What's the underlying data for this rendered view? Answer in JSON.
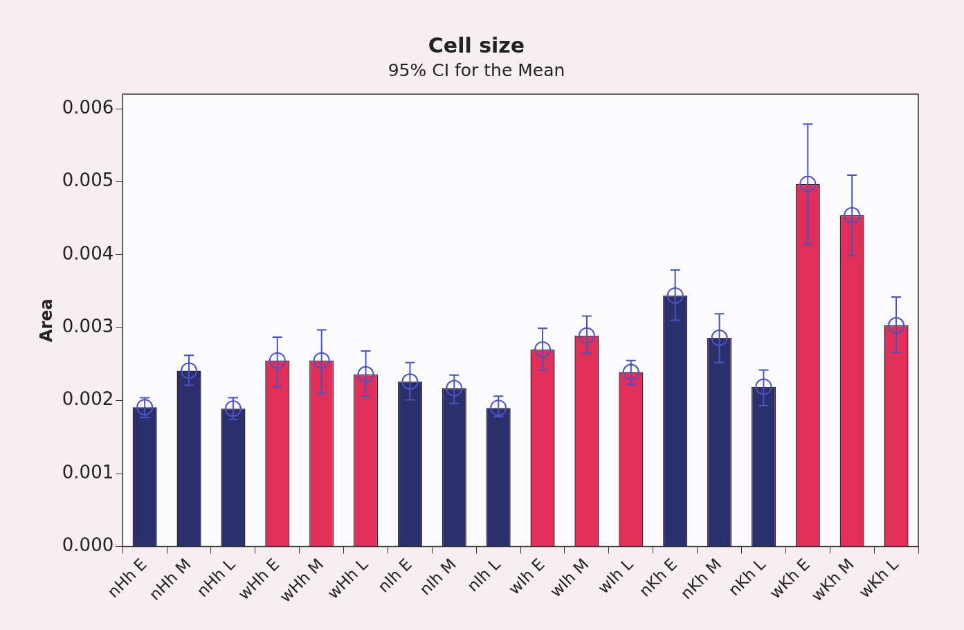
{
  "chart_data": {
    "type": "bar",
    "title": "Cell size",
    "subtitle": "95% CI for the Mean",
    "ylabel": "Area",
    "categories": [
      "nHh E",
      "nHh M",
      "nHh L",
      "wHh E",
      "wHh M",
      "wHh L",
      "nIh E",
      "nIh M",
      "nIh L",
      "wIh E",
      "wIh M",
      "wIh L",
      "nKh E",
      "nKh M",
      "nKh L",
      "wKh E",
      "wKh M",
      "wKh L"
    ],
    "series": [
      {
        "type": "bar",
        "colors": [
          "#2b2f6b",
          "#2b2f6b",
          "#2b2f6b",
          "#e0305a",
          "#e0305a",
          "#e0305a",
          "#2b2f6b",
          "#2b2f6b",
          "#2b2f6b",
          "#e0305a",
          "#e0305a",
          "#e0305a",
          "#2b2f6b",
          "#2b2f6b",
          "#2b2f6b",
          "#e0305a",
          "#e0305a",
          "#e0305a"
        ],
        "values": [
          0.00191,
          0.00241,
          0.00189,
          0.00255,
          0.00255,
          0.00236,
          0.00226,
          0.00217,
          0.0019,
          0.0027,
          0.00289,
          0.00239,
          0.00344,
          0.00286,
          0.00219,
          0.00497,
          0.00454,
          0.00303
        ],
        "errors": [
          [
            0.00177,
            0.00204
          ],
          [
            0.00221,
            0.00262
          ],
          [
            0.00174,
            0.00204
          ],
          [
            0.00219,
            0.00287
          ],
          [
            0.0021,
            0.00297
          ],
          [
            0.00206,
            0.00268
          ],
          [
            0.00201,
            0.00252
          ],
          [
            0.00196,
            0.00235
          ],
          [
            0.00178,
            0.00206
          ],
          [
            0.00242,
            0.00299
          ],
          [
            0.00265,
            0.00316
          ],
          [
            0.00222,
            0.00255
          ],
          [
            0.0031,
            0.00379
          ],
          [
            0.00252,
            0.00319
          ],
          [
            0.00193,
            0.00242
          ],
          [
            0.00414,
            0.00579
          ],
          [
            0.00399,
            0.00509
          ],
          [
            0.00266,
            0.00342
          ]
        ]
      },
      {
        "type": "scatter",
        "color": "#4a52c4",
        "x": [
          "nHh E",
          "nHh M",
          "nHh L",
          "wHh E",
          "wHh M",
          "wHh L",
          "nIh E",
          "nIh M",
          "nIh L",
          "wIh E",
          "wIh M",
          "wIh L",
          "nKh E",
          "nKh M",
          "nKh L",
          "wKh E",
          "wKh M",
          "wKh L"
        ],
        "values": [
          0.00191,
          0.00241,
          0.00189,
          0.00255,
          0.00255,
          0.00236,
          0.00226,
          0.00217,
          0.0019,
          0.0027,
          0.00289,
          0.00239,
          0.00344,
          0.00286,
          0.00219,
          0.00497,
          0.00454,
          0.00303
        ]
      }
    ],
    "marker": "circle",
    "ylim": [
      0,
      0.0062
    ],
    "yticks": [
      {
        "value": 0,
        "label": "0.000"
      },
      {
        "value": 0.001,
        "label": "0.001"
      },
      {
        "value": 0.002,
        "label": "0.002"
      },
      {
        "value": 0.003,
        "label": "0.003"
      },
      {
        "value": 0.004,
        "label": "0.004"
      },
      {
        "value": 0.005,
        "label": "0.005"
      },
      {
        "value": 0.006,
        "label": "0.006"
      }
    ],
    "grid": false,
    "legend": false
  }
}
